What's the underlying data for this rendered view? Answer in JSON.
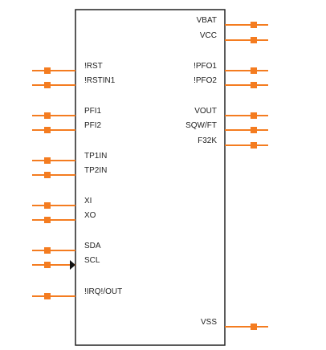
{
  "component": {
    "left_pins": [
      {
        "name": "!RST"
      },
      {
        "name": "!RSTIN1"
      },
      {
        "name": "PFI1"
      },
      {
        "name": "PFI2"
      },
      {
        "name": "TP1IN"
      },
      {
        "name": "TP2IN"
      },
      {
        "name": "XI"
      },
      {
        "name": "XO"
      },
      {
        "name": "SDA"
      },
      {
        "name": "SCL",
        "clock": true
      },
      {
        "name": "!IRQ!/OUT"
      }
    ],
    "right_pins": [
      {
        "name": "VBAT"
      },
      {
        "name": "VCC"
      },
      {
        "name": "!PFO1"
      },
      {
        "name": "!PFO2"
      },
      {
        "name": "VOUT"
      },
      {
        "name": "SQW/FT"
      },
      {
        "name": "F32K"
      },
      {
        "name": "VSS"
      }
    ]
  },
  "colors": {
    "pin": "#f47c20",
    "body_outline": "#222222",
    "text": "#222222",
    "background": "#ffffff"
  }
}
